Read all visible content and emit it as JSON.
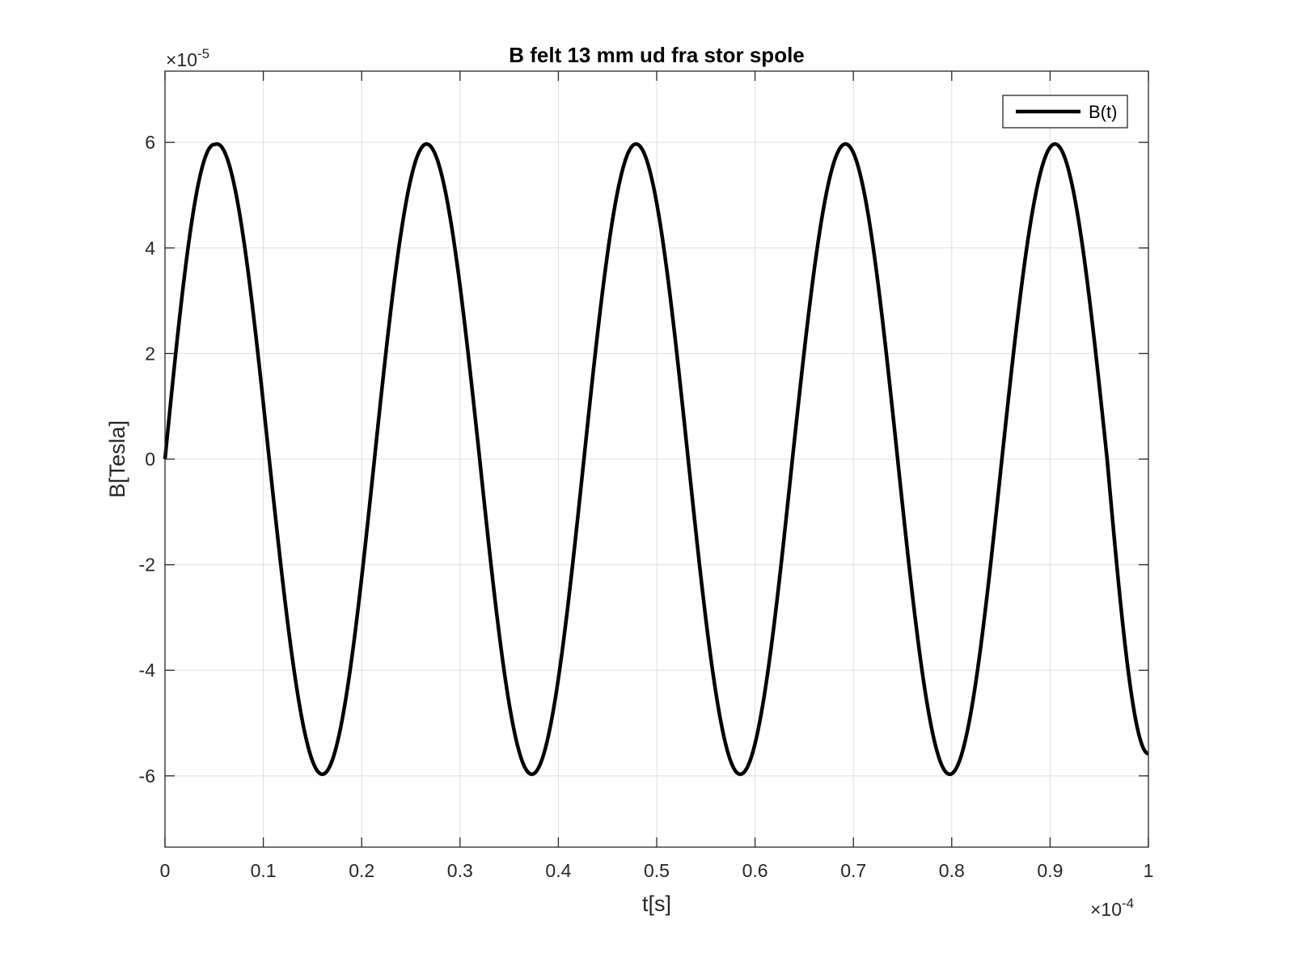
{
  "chart_data": {
    "type": "line",
    "title": "B felt 13 mm ud fra stor spole",
    "xlabel": "t[s]",
    "ylabel": "B[Tesla]",
    "x_exponent_label": "×10",
    "x_exponent": "-4",
    "y_exponent_label": "×10",
    "y_exponent": "-5",
    "xlim": [
      0,
      0.0001
    ],
    "ylim": [
      -7.35e-05,
      7.35e-05
    ],
    "x_ticks": [
      0,
      1e-05,
      2e-05,
      3e-05,
      4e-05,
      5e-05,
      6e-05,
      7e-05,
      8e-05,
      9e-05,
      0.0001
    ],
    "x_tick_labels": [
      "0",
      "0.1",
      "0.2",
      "0.3",
      "0.4",
      "0.5",
      "0.6",
      "0.7",
      "0.8",
      "0.9",
      "1"
    ],
    "y_ticks": [
      -6e-05,
      -4e-05,
      -2e-05,
      0,
      2e-05,
      4e-05,
      6e-05
    ],
    "y_tick_labels": [
      "-6",
      "-4",
      "-2",
      "0",
      "2",
      "4",
      "6"
    ],
    "grid": true,
    "legend_position": "top-right",
    "series": [
      {
        "name": "B(t)",
        "color": "#000000",
        "x": [
          0,
          5e-06,
          5.3e-06,
          1.06e-05,
          1.6e-05,
          2.13e-05,
          2.66e-05,
          3.2e-05,
          3.73e-05,
          4.26e-05,
          4.79e-05,
          5.32e-05,
          5.85e-05,
          6.38e-05,
          6.92e-05,
          7.45e-05,
          7.98e-05,
          8.51e-05,
          9.05e-05,
          9.58e-05,
          0.0001
        ],
        "y": [
          0,
          5.96e-05,
          5.97e-05,
          0,
          -5.97e-05,
          0,
          5.97e-05,
          0,
          -5.97e-05,
          0,
          5.97e-05,
          0,
          -5.97e-05,
          0,
          5.97e-05,
          0,
          -5.97e-05,
          0,
          5.97e-05,
          0,
          -5.58e-05
        ]
      }
    ]
  }
}
